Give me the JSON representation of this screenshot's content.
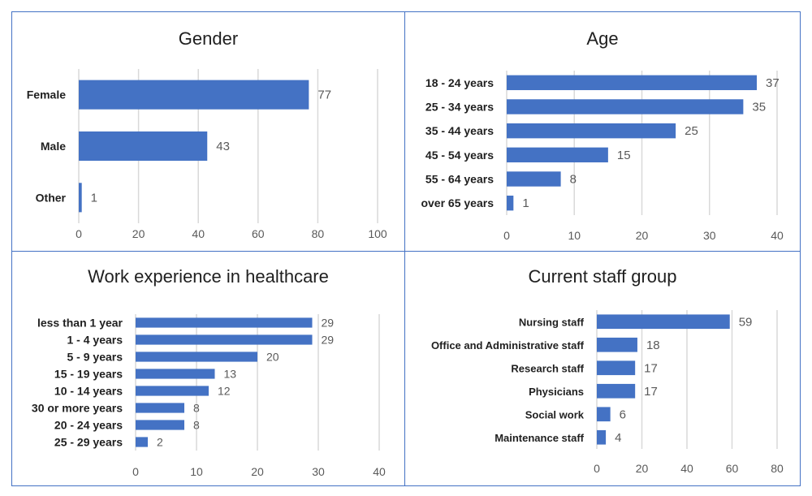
{
  "colors": {
    "bar": "#4472c4",
    "grid": "#d9d9d9",
    "border": "#4472c4",
    "text": "#1f1f1f",
    "tick": "#595959"
  },
  "chart_data": [
    {
      "type": "bar",
      "orientation": "horizontal",
      "title": "Gender",
      "categories": [
        "Female",
        "Male",
        "Other"
      ],
      "values": [
        77,
        43,
        1
      ],
      "xlim": [
        0,
        100
      ],
      "xticks": [
        0,
        20,
        40,
        60,
        80,
        100
      ],
      "grid": true
    },
    {
      "type": "bar",
      "orientation": "horizontal",
      "title": "Age",
      "categories": [
        "18 - 24 years",
        "25 - 34 years",
        "35 - 44 years",
        "45 - 54 years",
        "55 - 64 years",
        "over 65 years"
      ],
      "values": [
        37,
        35,
        25,
        15,
        8,
        1
      ],
      "xlim": [
        0,
        40
      ],
      "xticks": [
        0,
        10,
        20,
        30,
        40
      ],
      "grid": true
    },
    {
      "type": "bar",
      "orientation": "horizontal",
      "title": "Work experience in healthcare",
      "categories": [
        "less than 1 year",
        "1 - 4 years",
        "5 - 9 years",
        "15 - 19 years",
        "10 - 14 years",
        "30 or more years",
        "20 - 24 years",
        "25 - 29 years"
      ],
      "values": [
        29,
        29,
        20,
        13,
        12,
        8,
        8,
        2
      ],
      "xlim": [
        0,
        40
      ],
      "xticks": [
        0,
        10,
        20,
        30,
        40
      ],
      "grid": true
    },
    {
      "type": "bar",
      "orientation": "horizontal",
      "title": "Current staff group",
      "categories": [
        "Nursing staff",
        "Office and Administrative staff",
        "Research staff",
        "Physicians",
        "Social work",
        "Maintenance staff"
      ],
      "values": [
        59,
        18,
        17,
        17,
        6,
        4
      ],
      "xlim": [
        0,
        80
      ],
      "xticks": [
        0,
        20,
        40,
        60,
        80
      ],
      "grid": true
    }
  ]
}
